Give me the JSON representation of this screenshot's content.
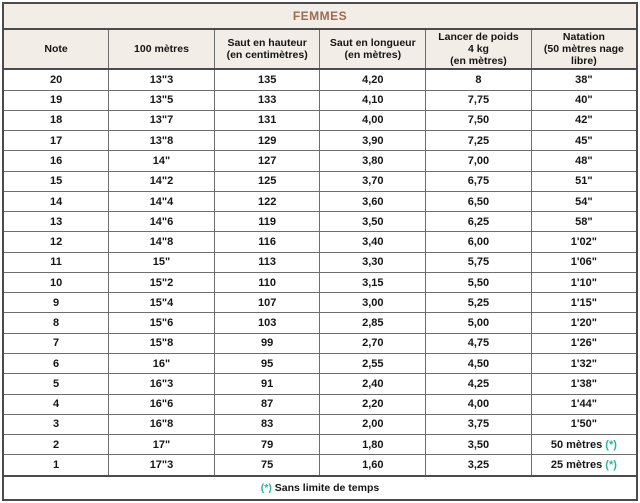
{
  "title": "FEMMES",
  "colors": {
    "title": "#9d6b50",
    "marker": "#2eb398",
    "header_bg": "#f2ede6",
    "border": "#6e6e6e"
  },
  "table": {
    "columns": [
      "Note",
      "100 mètres",
      "Saut en hauteur\n(en centimètres)",
      "Saut en longueur\n(en mètres)",
      "Lancer de poids\n4 kg\n(en mètres)",
      "Natation\n(50 mètres nage\nlibre)"
    ],
    "rows": [
      [
        "20",
        "13\"3",
        "135",
        "4,20",
        "8",
        "38\""
      ],
      [
        "19",
        "13\"5",
        "133",
        "4,10",
        "7,75",
        "40\""
      ],
      [
        "18",
        "13\"7",
        "131",
        "4,00",
        "7,50",
        "42\""
      ],
      [
        "17",
        "13\"8",
        "129",
        "3,90",
        "7,25",
        "45\""
      ],
      [
        "16",
        "14\"",
        "127",
        "3,80",
        "7,00",
        "48\""
      ],
      [
        "15",
        "14\"2",
        "125",
        "3,70",
        "6,75",
        "51\""
      ],
      [
        "14",
        "14\"4",
        "122",
        "3,60",
        "6,50",
        "54\""
      ],
      [
        "13",
        "14\"6",
        "119",
        "3,50",
        "6,25",
        "58\""
      ],
      [
        "12",
        "14\"8",
        "116",
        "3,40",
        "6,00",
        "1'02\""
      ],
      [
        "11",
        "15\"",
        "113",
        "3,30",
        "5,75",
        "1'06\""
      ],
      [
        "10",
        "15\"2",
        "110",
        "3,15",
        "5,50",
        "1'10\""
      ],
      [
        "9",
        "15\"4",
        "107",
        "3,00",
        "5,25",
        "1'15\""
      ],
      [
        "8",
        "15\"6",
        "103",
        "2,85",
        "5,00",
        "1'20\""
      ],
      [
        "7",
        "15\"8",
        "99",
        "2,70",
        "4,75",
        "1'26\""
      ],
      [
        "6",
        "16\"",
        "95",
        "2,55",
        "4,50",
        "1'32\""
      ],
      [
        "5",
        "16\"3",
        "91",
        "2,40",
        "4,25",
        "1'38\""
      ],
      [
        "4",
        "16\"6",
        "87",
        "2,20",
        "4,00",
        "1'44\""
      ],
      [
        "3",
        "16\"8",
        "83",
        "2,00",
        "3,75",
        "1'50\""
      ],
      [
        "2",
        "17\"",
        "79",
        "1,80",
        "3,50",
        "50 mètres (*)"
      ],
      [
        "1",
        "17\"3",
        "75",
        "1,60",
        "3,25",
        "25 mètres (*)"
      ]
    ]
  },
  "footnote": {
    "marker": "(*)",
    "text": "Sans limite de temps"
  }
}
